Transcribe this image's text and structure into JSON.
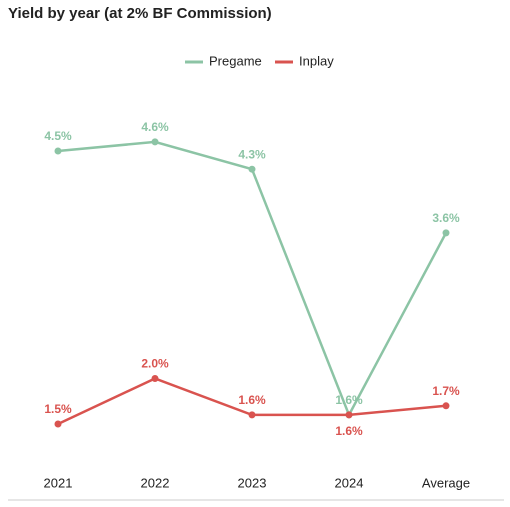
{
  "chart_data": {
    "type": "line",
    "title": "Yield by year (at 2% BF Commission)",
    "categories": [
      "2021",
      "2022",
      "2023",
      "2024",
      "Average"
    ],
    "series": [
      {
        "name": "Pregame",
        "color": "#8cc4a5",
        "values": [
          4.5,
          4.6,
          4.3,
          1.6,
          3.6
        ],
        "value_labels": [
          "4.5%",
          "4.6%",
          "4.3%",
          "1.6%",
          "3.6%"
        ]
      },
      {
        "name": "Inplay",
        "color": "#d9534f",
        "values": [
          1.5,
          2.0,
          1.6,
          1.6,
          1.7
        ],
        "value_labels": [
          "1.5%",
          "2.0%",
          "1.6%",
          "1.6%",
          "1.7%"
        ]
      }
    ],
    "ylim": [
      1,
      5
    ],
    "legend": "top"
  }
}
